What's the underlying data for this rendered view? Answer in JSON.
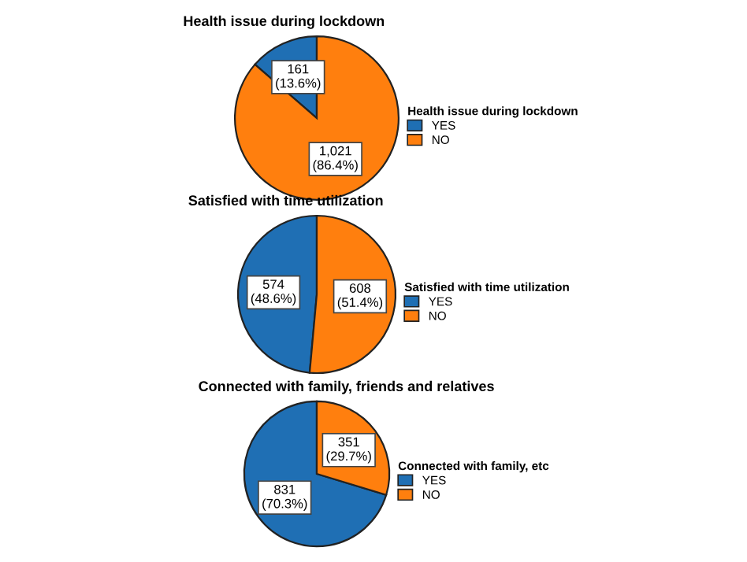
{
  "chart_data": [
    {
      "type": "pie",
      "title": "Health issue during lockdown",
      "categories": [
        "YES",
        "NO"
      ],
      "values": [
        161,
        1021
      ],
      "colors": [
        "#1f6fb4",
        "#ff7f0e"
      ],
      "value_labels": [
        "161\n(13.6%)",
        "1,021\n(86.4%)"
      ],
      "legend_title": "Health issue during lockdown",
      "legend": "right"
    },
    {
      "type": "pie",
      "title": "Satisfied with time utilization",
      "categories": [
        "YES",
        "NO"
      ],
      "values": [
        574,
        608
      ],
      "colors": [
        "#1f6fb4",
        "#ff7f0e"
      ],
      "value_labels": [
        "574\n(48.6%)",
        "608\n(51.4%)"
      ],
      "legend_title": "Satisfied with time utilization",
      "legend": "right"
    },
    {
      "type": "pie",
      "title": "Connected with family, friends and relatives",
      "categories": [
        "YES",
        "NO"
      ],
      "values": [
        831,
        351
      ],
      "colors": [
        "#1f6fb4",
        "#ff7f0e"
      ],
      "value_labels": [
        "831\n(70.3%)",
        "351\n(29.7%)"
      ],
      "legend_title": "Connected with family, etc",
      "legend": "right"
    }
  ]
}
